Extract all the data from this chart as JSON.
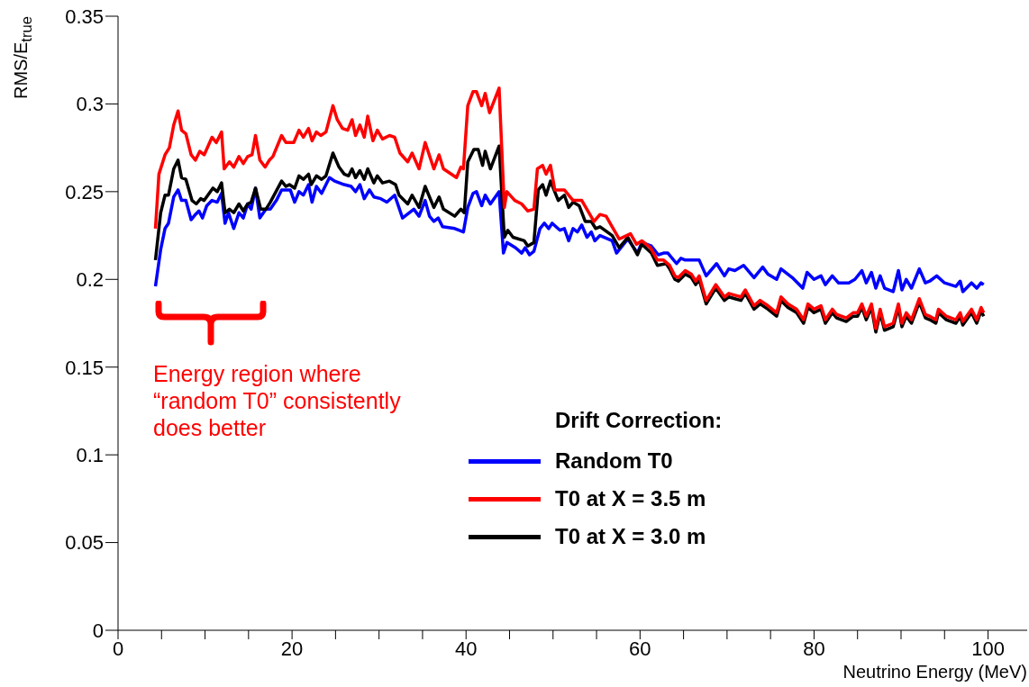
{
  "chart_data": {
    "type": "line",
    "xlabel": "Neutrino Energy (MeV)",
    "ylabel": "RMS/E$_{true}$",
    "legend_title": "Drift Correction:",
    "legend": "bottom right",
    "marker": "none",
    "line_style": "solid",
    "xlim": [
      0,
      104.5
    ],
    "ylim": [
      0,
      0.35
    ],
    "xticks": [
      0,
      {
        "value": 5,
        "label": null
      },
      {
        "value": 10,
        "label": null
      },
      {
        "value": 15,
        "label": null
      },
      20,
      {
        "value": 25,
        "label": null
      },
      {
        "value": 30,
        "label": null
      },
      {
        "value": 35,
        "label": null
      },
      40,
      {
        "value": 45,
        "label": null
      },
      {
        "value": 50,
        "label": null
      },
      {
        "value": 55,
        "label": null
      },
      60,
      {
        "value": 65,
        "label": null
      },
      {
        "value": 70,
        "label": null
      },
      {
        "value": 75,
        "label": null
      },
      80,
      {
        "value": 85,
        "label": null
      },
      {
        "value": 90,
        "label": null
      },
      {
        "value": 95,
        "label": null
      },
      100
    ],
    "yticks": [
      0,
      0.05,
      0.1,
      0.15,
      0.2,
      0.25,
      0.3,
      0.35
    ],
    "annotations": [
      "Energy region where “random T0” consistently does better"
    ],
    "series": [
      {
        "name": "Random T0",
        "color": "#0000ff",
        "x": [
          4.3,
          4.9,
          5.4,
          5.8,
          6.4,
          6.9,
          7.3,
          7.8,
          8.4,
          8.9,
          9.3,
          9.7,
          10.2,
          10.8,
          11.4,
          11.9,
          12.3,
          12.7,
          13.3,
          13.9,
          14.4,
          14.9,
          15.3,
          15.8,
          16.3,
          17,
          17.5,
          18.2,
          18.8,
          19.8,
          20.3,
          20.8,
          21.3,
          21.9,
          22.3,
          22.8,
          23.4,
          24.3,
          24.9,
          26,
          26.8,
          27.3,
          27.8,
          28.3,
          28.9,
          29.4,
          30.2,
          30.9,
          31.8,
          32.7,
          34,
          34.6,
          35.3,
          35.8,
          36.3,
          36.8,
          37.3,
          38.7,
          39.7,
          40.2,
          40.8,
          41.2,
          41.8,
          42.2,
          42.8,
          43.8,
          44.3,
          44.7,
          45.7,
          46.4,
          46.8,
          47.3,
          47.8,
          48.5,
          49,
          49.5,
          49.9,
          50.8,
          51.3,
          51.8,
          52.3,
          52.8,
          53.3,
          53.9,
          54.4,
          54.8,
          55.4,
          56.8,
          57.3,
          58.6,
          59.7,
          60.2,
          61.3,
          62.1,
          62.7,
          63.2,
          64.2,
          64.7,
          65.2,
          66.8,
          67.6,
          68.8,
          69.7,
          70.2,
          70.9,
          71.9,
          73.1,
          74.1,
          74.7,
          75.7,
          76.2,
          77.5,
          78.7,
          79.2,
          80,
          80.8,
          81.3,
          82.1,
          82.8,
          84,
          84.7,
          85.5,
          86,
          86.6,
          87.1,
          87.6,
          88.1,
          89.1,
          89.7,
          90.1,
          90.6,
          91.2,
          92.1,
          92.8,
          93.3,
          94.1,
          95,
          96.3,
          96.8,
          97.1,
          98.1,
          98.7,
          99.2,
          99.5
        ],
        "values": [
          0.196,
          0.217,
          0.229,
          0.232,
          0.247,
          0.251,
          0.245,
          0.245,
          0.234,
          0.237,
          0.239,
          0.235,
          0.242,
          0.245,
          0.244,
          0.249,
          0.232,
          0.238,
          0.229,
          0.238,
          0.235,
          0.243,
          0.24,
          0.252,
          0.235,
          0.24,
          0.24,
          0.245,
          0.251,
          0.251,
          0.244,
          0.25,
          0.248,
          0.254,
          0.244,
          0.253,
          0.249,
          0.258,
          0.256,
          0.254,
          0.253,
          0.25,
          0.254,
          0.246,
          0.251,
          0.247,
          0.246,
          0.244,
          0.248,
          0.235,
          0.24,
          0.236,
          0.245,
          0.236,
          0.233,
          0.235,
          0.23,
          0.229,
          0.227,
          0.241,
          0.249,
          0.25,
          0.242,
          0.248,
          0.243,
          0.25,
          0.215,
          0.221,
          0.218,
          0.215,
          0.218,
          0.214,
          0.216,
          0.229,
          0.232,
          0.229,
          0.232,
          0.228,
          0.229,
          0.222,
          0.229,
          0.227,
          0.231,
          0.224,
          0.227,
          0.222,
          0.225,
          0.222,
          0.215,
          0.223,
          0.215,
          0.221,
          0.219,
          0.214,
          0.215,
          0.215,
          0.209,
          0.212,
          0.211,
          0.211,
          0.202,
          0.209,
          0.202,
          0.206,
          0.205,
          0.208,
          0.201,
          0.207,
          0.203,
          0.2,
          0.206,
          0.201,
          0.195,
          0.204,
          0.2,
          0.202,
          0.197,
          0.202,
          0.198,
          0.198,
          0.2,
          0.205,
          0.198,
          0.204,
          0.195,
          0.202,
          0.195,
          0.193,
          0.205,
          0.194,
          0.2,
          0.195,
          0.206,
          0.198,
          0.199,
          0.202,
          0.198,
          0.196,
          0.199,
          0.193,
          0.198,
          0.195,
          0.198,
          0.197
        ]
      },
      {
        "name": "T0 at X = 3.5 m",
        "color": "#ff0000",
        "x": [
          4.3,
          4.7,
          5.4,
          5.9,
          6.4,
          6.9,
          7.3,
          7.8,
          8.4,
          8.9,
          9.4,
          9.9,
          10.8,
          11.3,
          11.9,
          12.2,
          12.8,
          13.3,
          13.9,
          14.4,
          14.9,
          15.4,
          15.8,
          16.3,
          16.9,
          17.4,
          17.8,
          18.8,
          19.3,
          20.2,
          20.8,
          21.3,
          21.9,
          22.3,
          22.8,
          23.3,
          23.9,
          24.7,
          25.2,
          25.8,
          26.4,
          26.9,
          27.3,
          27.8,
          28.3,
          28.7,
          29.3,
          29.8,
          30.4,
          31.2,
          31.8,
          32.4,
          33.3,
          33.8,
          34.6,
          35.3,
          36.3,
          36.9,
          37.4,
          38.9,
          39.4,
          39.7,
          40.2,
          40.8,
          41.2,
          41.8,
          42.2,
          42.7,
          43.8,
          44.4,
          44.7,
          45.6,
          46.4,
          47.1,
          47.8,
          48.2,
          48.8,
          49.2,
          49.7,
          50.2,
          51.3,
          52.3,
          53.3,
          54.7,
          55.4,
          56.1,
          57.6,
          58.9,
          59.6,
          60.2,
          61.2,
          62,
          62.7,
          63.4,
          64,
          64.4,
          65.2,
          65.9,
          66.4,
          66.8,
          67.6,
          68.7,
          69.7,
          70.2,
          70.9,
          71.6,
          72.1,
          73.1,
          73.8,
          74.7,
          75.7,
          76.2,
          77,
          78,
          78.8,
          79.3,
          80,
          80.8,
          81.3,
          82.1,
          82.6,
          83.7,
          84.5,
          85,
          85.5,
          86,
          86.6,
          87.1,
          87.6,
          88.1,
          89.1,
          89.7,
          90.1,
          90.6,
          91.2,
          92.1,
          92.8,
          93.3,
          94,
          94.3,
          95.2,
          96.3,
          96.8,
          97.1,
          98.1,
          98.7,
          99.2,
          99.5
        ],
        "values": [
          0.229,
          0.26,
          0.271,
          0.275,
          0.288,
          0.296,
          0.285,
          0.283,
          0.271,
          0.268,
          0.273,
          0.271,
          0.281,
          0.278,
          0.284,
          0.263,
          0.267,
          0.264,
          0.27,
          0.266,
          0.27,
          0.271,
          0.282,
          0.268,
          0.264,
          0.268,
          0.27,
          0.282,
          0.278,
          0.278,
          0.285,
          0.281,
          0.286,
          0.279,
          0.284,
          0.282,
          0.284,
          0.299,
          0.291,
          0.286,
          0.285,
          0.291,
          0.282,
          0.288,
          0.281,
          0.293,
          0.279,
          0.285,
          0.28,
          0.282,
          0.281,
          0.272,
          0.267,
          0.272,
          0.263,
          0.278,
          0.263,
          0.271,
          0.263,
          0.258,
          0.264,
          0.263,
          0.299,
          0.307,
          0.307,
          0.299,
          0.306,
          0.295,
          0.309,
          0.241,
          0.25,
          0.245,
          0.243,
          0.239,
          0.24,
          0.263,
          0.265,
          0.26,
          0.265,
          0.251,
          0.251,
          0.245,
          0.245,
          0.233,
          0.237,
          0.236,
          0.223,
          0.226,
          0.22,
          0.222,
          0.218,
          0.211,
          0.211,
          0.208,
          0.202,
          0.201,
          0.205,
          0.203,
          0.199,
          0.202,
          0.188,
          0.197,
          0.19,
          0.192,
          0.191,
          0.19,
          0.194,
          0.185,
          0.188,
          0.185,
          0.181,
          0.19,
          0.186,
          0.183,
          0.177,
          0.186,
          0.183,
          0.185,
          0.177,
          0.183,
          0.18,
          0.178,
          0.181,
          0.181,
          0.186,
          0.179,
          0.186,
          0.172,
          0.183,
          0.173,
          0.175,
          0.186,
          0.175,
          0.181,
          0.177,
          0.189,
          0.18,
          0.179,
          0.177,
          0.183,
          0.179,
          0.177,
          0.181,
          0.176,
          0.183,
          0.177,
          0.184,
          0.181
        ]
      },
      {
        "name": "T0 at X = 3.0 m",
        "color": "#000000",
        "x": [
          4.3,
          4.9,
          5.4,
          5.8,
          6.4,
          6.9,
          7.3,
          7.8,
          8.5,
          9,
          9.5,
          9.9,
          10.9,
          11.4,
          11.9,
          12.3,
          12.8,
          13.3,
          13.9,
          14.4,
          14.9,
          15.3,
          15.8,
          16.4,
          17,
          17.5,
          18.8,
          19.3,
          19.7,
          20.3,
          20.8,
          21.3,
          21.9,
          22.2,
          22.8,
          23.4,
          23.9,
          24.7,
          25.4,
          26,
          26.5,
          26.9,
          27.3,
          27.8,
          28.3,
          28.7,
          29.4,
          29.8,
          30.4,
          31.2,
          31.9,
          32.3,
          33.3,
          33.8,
          34.6,
          35.3,
          36.3,
          36.9,
          37.4,
          38.7,
          39.4,
          39.8,
          40.2,
          40.9,
          41.4,
          41.9,
          42.2,
          42.8,
          43.8,
          44.4,
          44.8,
          45.4,
          46.7,
          47.1,
          47.8,
          48.3,
          48.8,
          49.2,
          49.7,
          50.6,
          51.3,
          51.8,
          52.3,
          53,
          53.7,
          54.4,
          54.9,
          55.4,
          56.8,
          57.6,
          58.6,
          59.7,
          60.2,
          61.3,
          62,
          63,
          63.4,
          64,
          64.4,
          65.2,
          65.9,
          66.4,
          66.8,
          67.6,
          68.7,
          69.7,
          70.2,
          70.9,
          71.6,
          72.1,
          73.1,
          73.8,
          74.7,
          75.7,
          76.2,
          77,
          78,
          78.8,
          79.3,
          80,
          80.8,
          81.3,
          82.1,
          82.6,
          83.7,
          84.5,
          85,
          85.5,
          86,
          86.6,
          87.1,
          87.6,
          88.1,
          89.1,
          89.7,
          90.1,
          90.6,
          91.2,
          92.1,
          92.8,
          93.3,
          94,
          94.3,
          95.2,
          96.3,
          96.8,
          97.1,
          98.1,
          98.7,
          99.2,
          99.5
        ],
        "values": [
          0.211,
          0.238,
          0.248,
          0.248,
          0.263,
          0.268,
          0.258,
          0.257,
          0.245,
          0.243,
          0.246,
          0.245,
          0.252,
          0.25,
          0.255,
          0.238,
          0.24,
          0.238,
          0.243,
          0.239,
          0.243,
          0.244,
          0.252,
          0.24,
          0.24,
          0.244,
          0.256,
          0.253,
          0.254,
          0.252,
          0.259,
          0.257,
          0.26,
          0.254,
          0.259,
          0.257,
          0.259,
          0.272,
          0.264,
          0.26,
          0.259,
          0.263,
          0.258,
          0.262,
          0.257,
          0.263,
          0.255,
          0.259,
          0.255,
          0.256,
          0.254,
          0.248,
          0.243,
          0.248,
          0.241,
          0.253,
          0.241,
          0.247,
          0.24,
          0.236,
          0.24,
          0.238,
          0.267,
          0.274,
          0.274,
          0.265,
          0.273,
          0.263,
          0.276,
          0.224,
          0.228,
          0.224,
          0.222,
          0.219,
          0.221,
          0.251,
          0.254,
          0.248,
          0.256,
          0.245,
          0.248,
          0.241,
          0.244,
          0.242,
          0.233,
          0.233,
          0.229,
          0.23,
          0.225,
          0.218,
          0.224,
          0.214,
          0.22,
          0.215,
          0.208,
          0.209,
          0.206,
          0.2,
          0.199,
          0.203,
          0.201,
          0.197,
          0.2,
          0.186,
          0.195,
          0.188,
          0.19,
          0.189,
          0.188,
          0.192,
          0.183,
          0.186,
          0.183,
          0.179,
          0.188,
          0.184,
          0.181,
          0.175,
          0.184,
          0.181,
          0.183,
          0.175,
          0.181,
          0.178,
          0.176,
          0.179,
          0.179,
          0.184,
          0.177,
          0.184,
          0.17,
          0.181,
          0.171,
          0.173,
          0.184,
          0.173,
          0.179,
          0.175,
          0.187,
          0.178,
          0.177,
          0.175,
          0.181,
          0.177,
          0.175,
          0.179,
          0.174,
          0.181,
          0.175,
          0.182,
          0.179
        ]
      }
    ]
  }
}
